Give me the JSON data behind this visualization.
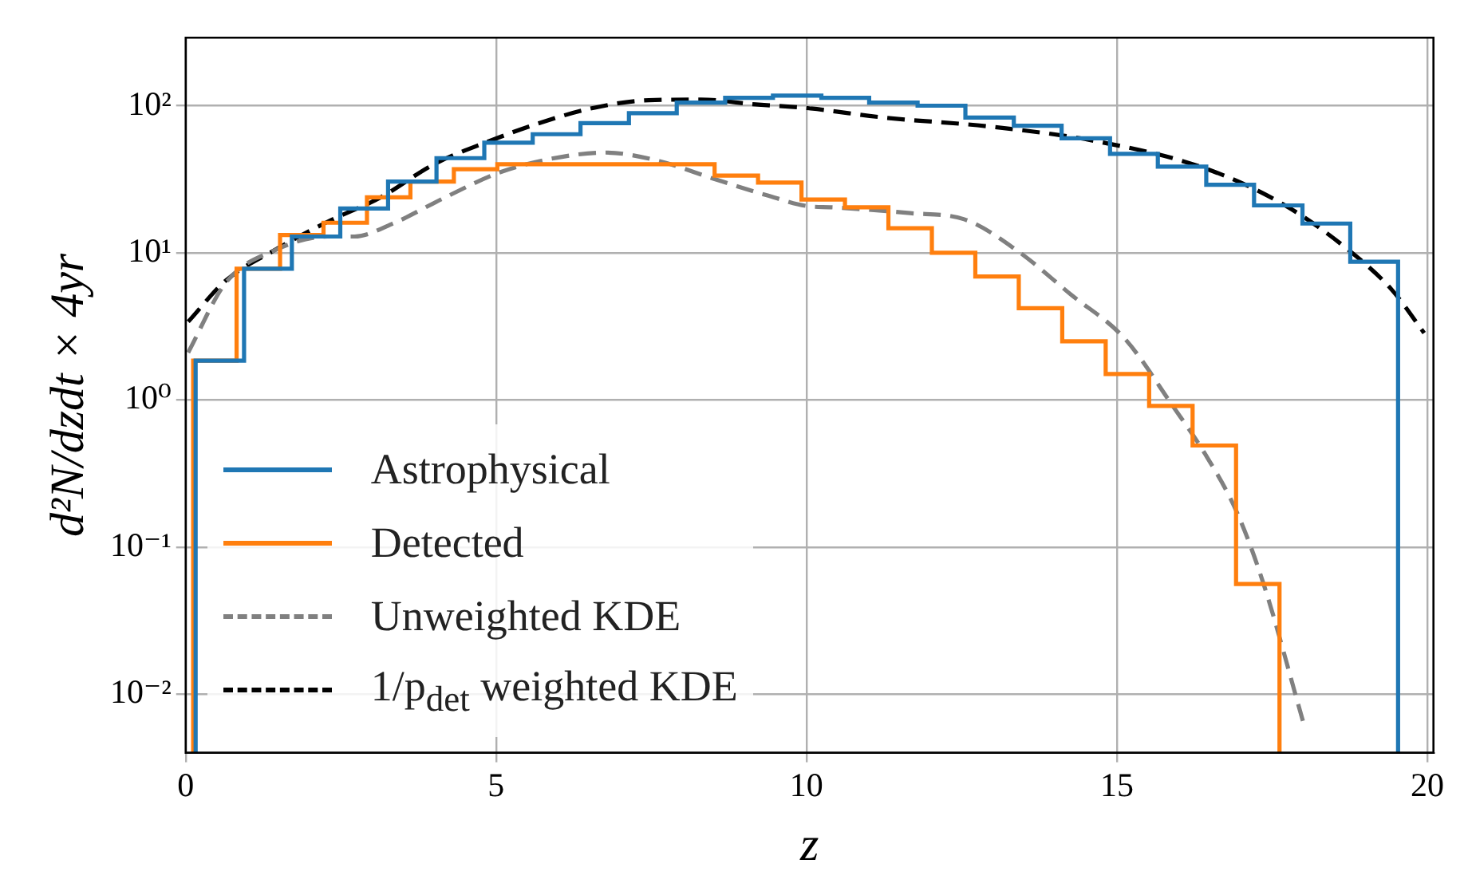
{
  "chart_data": {
    "type": "histogram",
    "xlabel": "z",
    "ylabel": "d²N/dzdt × 4yr",
    "series": [
      {
        "name": "Astrophysical",
        "color": "#1f77b4",
        "bins": [
          0.16,
          0.94,
          1.71,
          2.49,
          3.26,
          4.04,
          4.81,
          5.59,
          6.36,
          7.14,
          7.91,
          8.69,
          9.46,
          10.24,
          11.01,
          11.79,
          12.56,
          13.34,
          14.11,
          14.89,
          15.66,
          16.44,
          17.21,
          17.99,
          18.76,
          19.53
        ],
        "values": [
          1.85,
          7.8,
          12.9,
          20,
          30.5,
          44,
          56,
          64,
          76,
          89,
          105,
          113,
          117,
          113,
          105,
          100,
          83,
          73,
          60,
          47,
          38.5,
          29,
          21,
          15.8,
          8.7
        ]
      },
      {
        "name": "Detected",
        "color": "#ff7f0e",
        "bins": [
          0.12,
          0.82,
          1.52,
          2.22,
          2.92,
          3.62,
          4.32,
          5.02,
          5.72,
          6.42,
          7.12,
          7.82,
          8.52,
          9.22,
          9.92,
          10.62,
          11.32,
          12.02,
          12.72,
          13.42,
          14.12,
          14.82,
          15.52,
          16.22,
          16.92,
          17.62
        ],
        "values": [
          1.85,
          7.8,
          13.2,
          16,
          23.8,
          30.5,
          37,
          40,
          40,
          40,
          40,
          40,
          33.5,
          30,
          23,
          20.4,
          14.7,
          10,
          6.9,
          4.2,
          2.5,
          1.5,
          0.91,
          0.49,
          0.056
        ]
      },
      {
        "name": "Unweighted KDE",
        "type": "line",
        "line_style": "dashed",
        "color": "#808080",
        "x": [
          0.04,
          0.65,
          1.41,
          2.28,
          2.72,
          3.32,
          4.18,
          5.04,
          5.9,
          6.76,
          7.63,
          8.49,
          9.35,
          10.04,
          10.38,
          11.67,
          12.54,
          13.4,
          14.26,
          15.13,
          15.9,
          16.42,
          16.94,
          17.37,
          18.0
        ],
        "values": [
          2.1,
          6.3,
          10.3,
          12.9,
          12.9,
          15.7,
          23.8,
          35,
          43.7,
          48,
          42,
          32,
          24.7,
          20.7,
          20.4,
          18.6,
          16.9,
          10.3,
          5.2,
          2.6,
          0.91,
          0.43,
          0.17,
          0.055,
          0.0065
        ]
      },
      {
        "name": "1/p$_{det}$ weighted KDE",
        "type": "line",
        "line_style": "dashed",
        "color": "#000000",
        "x": [
          0.04,
          0.65,
          1.41,
          2.28,
          3.14,
          4.0,
          4.87,
          5.73,
          6.59,
          7.46,
          8.3,
          9.18,
          10.04,
          11.25,
          12.97,
          14.7,
          16.42,
          17.71,
          18.75,
          19.43,
          19.95
        ],
        "values": [
          3.4,
          6.5,
          10.3,
          16.2,
          23.8,
          40,
          57,
          77,
          97,
          109,
          110,
          102,
          96,
          83,
          72,
          57,
          37.5,
          21,
          10.3,
          5.6,
          2.85
        ]
      }
    ],
    "xlim": [
      0,
      20.1
    ],
    "xticks": [
      0,
      5,
      10,
      15,
      20
    ],
    "ylim": [
      0.004,
      290
    ],
    "yticks": [
      {
        "value": 0.01,
        "label": "10⁻²"
      },
      {
        "value": 0.1,
        "label": "10⁻¹"
      },
      {
        "value": 1,
        "label": "10⁰"
      },
      {
        "value": 10,
        "label": "10¹"
      },
      {
        "value": 100,
        "label": "10²"
      }
    ],
    "log": "y",
    "grid": true,
    "legend": "bottom left"
  }
}
